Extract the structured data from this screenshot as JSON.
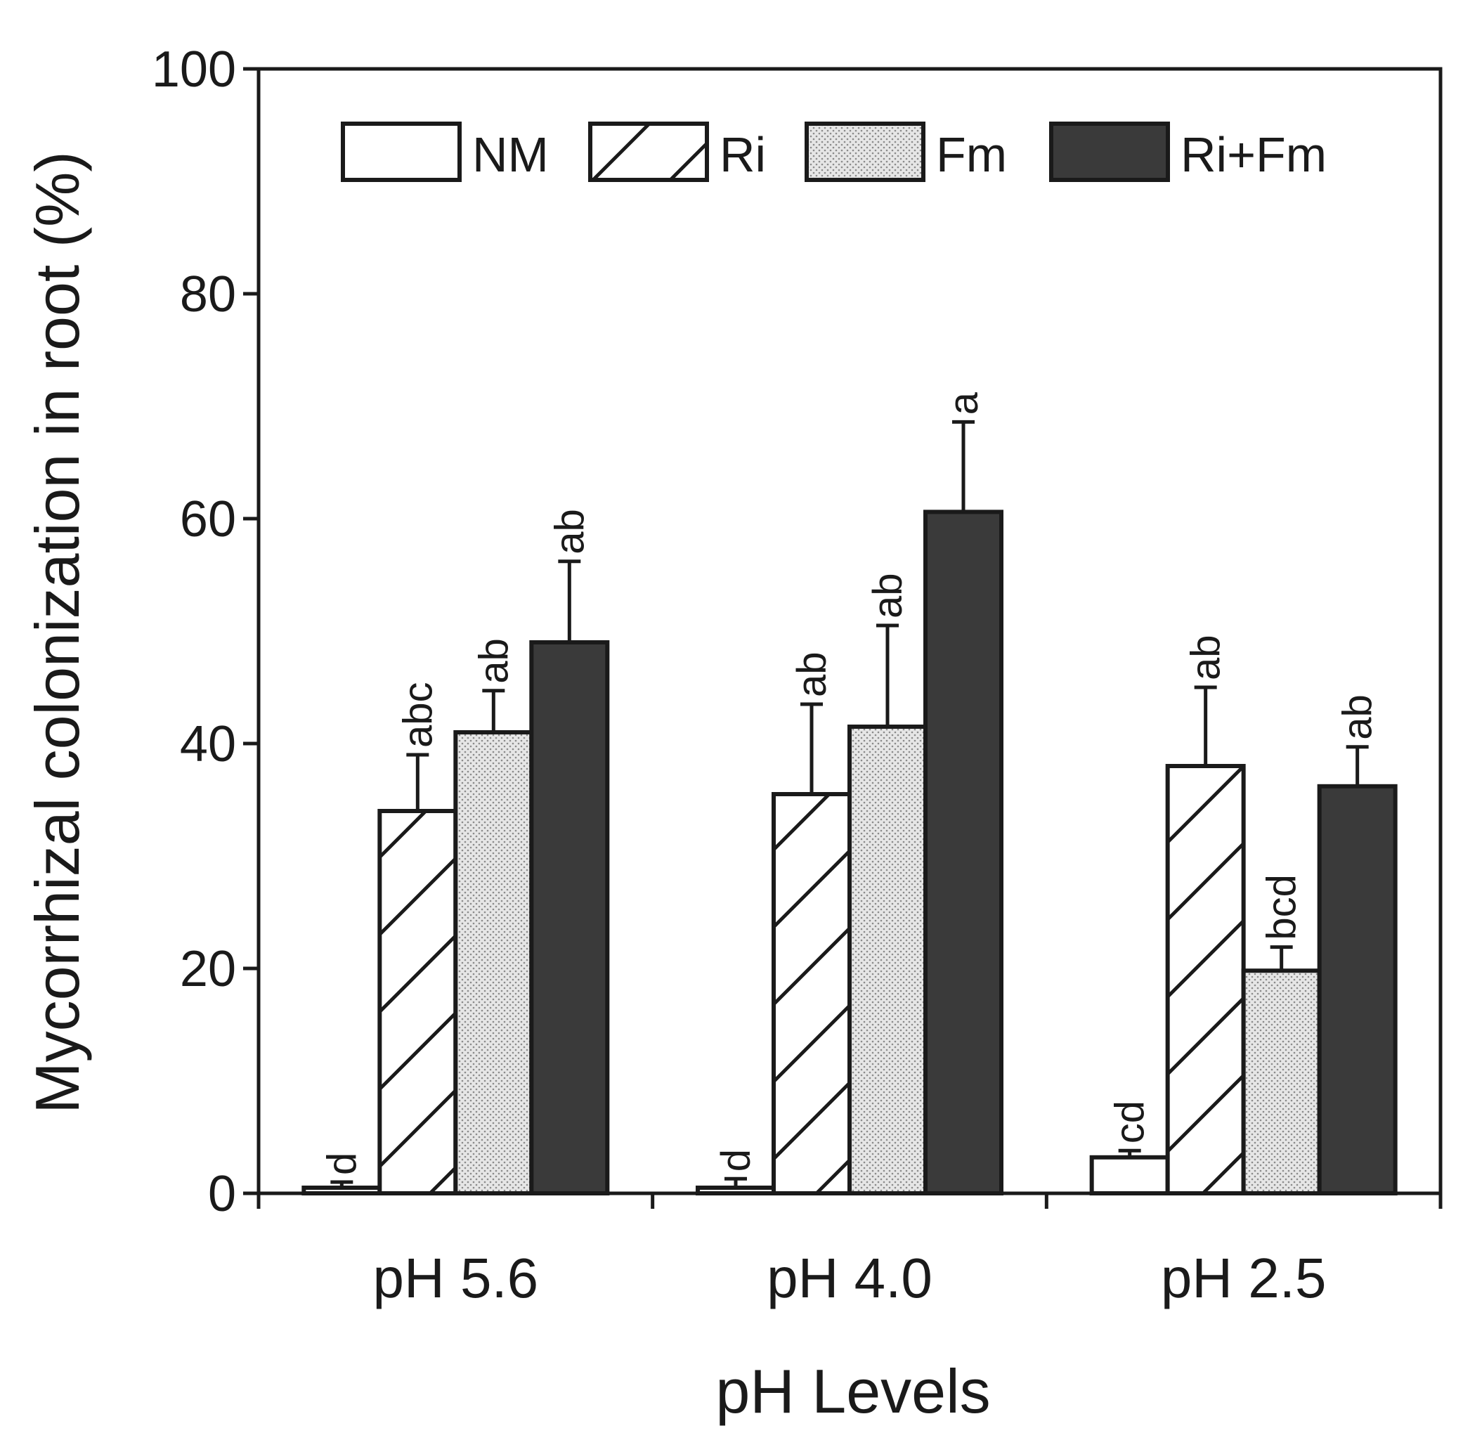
{
  "chart_data": {
    "type": "bar",
    "xlabel": "pH Levels",
    "ylabel": "Mycorrhizal colonization in root (%)",
    "ylim": [
      0,
      100
    ],
    "yticks": [
      0,
      20,
      40,
      60,
      80,
      100
    ],
    "categories": [
      "pH 5.6",
      "pH 4.0",
      "pH 2.5"
    ],
    "legend_position": "top",
    "series": [
      {
        "name": "NM",
        "pattern": "none",
        "fill": "#ffffff",
        "values": [
          0.5,
          0.5,
          3.2
        ],
        "errors": [
          0.5,
          0.8,
          0.6
        ],
        "letters": [
          "d",
          "d",
          "cd"
        ]
      },
      {
        "name": "Ri",
        "pattern": "hatch",
        "fill": "#ffffff",
        "values": [
          34,
          35.5,
          38
        ],
        "errors": [
          5,
          8,
          7
        ],
        "letters": [
          "abc",
          "ab",
          "ab"
        ]
      },
      {
        "name": "Fm",
        "pattern": "dots",
        "fill": "#d0d0d0",
        "values": [
          41,
          41.5,
          19.8
        ],
        "errors": [
          3.7,
          9,
          2.1
        ],
        "letters": [
          "ab",
          "ab",
          "bcd"
        ]
      },
      {
        "name": "Ri+Fm",
        "pattern": "none",
        "fill": "#3a3a3a",
        "values": [
          49,
          60.6,
          36.2
        ],
        "errors": [
          7.2,
          8,
          3.5
        ],
        "letters": [
          "ab",
          "a",
          "ab"
        ]
      }
    ]
  }
}
